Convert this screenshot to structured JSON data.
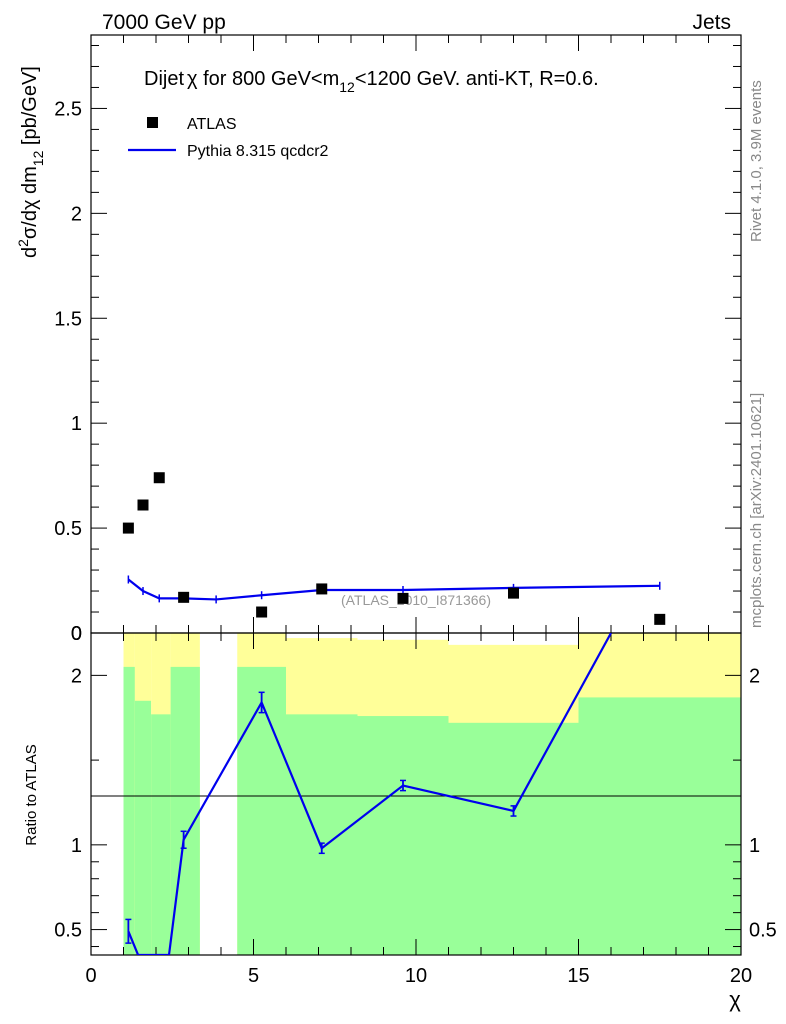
{
  "header": {
    "left": "7000 GeV pp",
    "right": "Jets"
  },
  "side_labels": {
    "rivet": "Rivet 4.1.0,  3.9M events",
    "mcplots": "mcplots.cern.ch [arXiv:2401.10621]"
  },
  "chart_data": [
    {
      "type": "scatter",
      "title": "Dijet χ for 800 GeV<m12<1200 GeV.  anti-KT, R=0.6.",
      "title_parts": {
        "pre": "Dijet",
        "chi": "χ",
        "mid": " for 800 GeV<m",
        "sub": "12",
        "post": "<1200 GeV.  anti-KT, R=0.6."
      },
      "ylabel": "d²σ/dχ dm12 [pb/GeV]",
      "ylabel_parts": {
        "d": "d",
        "sup2": "2",
        "body": "σ/dχ dm",
        "sub": "12",
        "unit": " [pb/GeV]"
      },
      "xlim": [
        0,
        20
      ],
      "ylim": [
        0,
        2.85
      ],
      "yticks": [
        "0",
        "0.5",
        "1",
        "1.5",
        "2",
        "2.5"
      ],
      "watermark": "(ATLAS_2010_I871366)",
      "legend": {
        "placement": "top-left",
        "atlas": "ATLAS",
        "mc": "Pythia 8.315 qcdcr2"
      },
      "series": [
        {
          "name": "ATLAS",
          "kind": "data",
          "x": [
            1.15,
            1.6,
            2.1,
            2.85,
            5.25,
            7.1,
            9.6,
            13.0,
            17.5
          ],
          "y": [
            0.5,
            0.61,
            0.74,
            0.17,
            0.1,
            0.21,
            0.165,
            0.19,
            0.065
          ]
        },
        {
          "name": "Pythia 8.315 qcdcr2",
          "kind": "mc",
          "color": "#0000ee",
          "x": [
            1.15,
            1.6,
            2.1,
            2.85,
            3.85,
            5.25,
            7.1,
            9.6,
            13.0,
            17.5
          ],
          "y": [
            0.255,
            0.2,
            0.165,
            0.165,
            0.16,
            0.18,
            0.205,
            0.205,
            0.215,
            0.225
          ]
        }
      ]
    },
    {
      "type": "line",
      "ylabel": "Ratio to ATLAS",
      "xlabel": "χ",
      "xlim": [
        0,
        20
      ],
      "ylim": [
        0.35,
        2.25
      ],
      "xticks": [
        "0",
        "5",
        "10",
        "15",
        "20"
      ],
      "yticks": [
        "0.5",
        "1",
        "2"
      ],
      "bands": [
        {
          "x0": 1.0,
          "x1": 1.35,
          "green": 2.05,
          "yellow": 2.25
        },
        {
          "x0": 1.35,
          "x1": 1.85,
          "green": 1.85,
          "yellow": 2.25
        },
        {
          "x0": 1.85,
          "x1": 2.45,
          "green": 1.77,
          "yellow": 2.25
        },
        {
          "x0": 2.45,
          "x1": 3.35,
          "green": 2.05,
          "yellow": 2.25
        },
        {
          "x0": 4.5,
          "x1": 6.0,
          "green": 2.05,
          "yellow": 2.25
        },
        {
          "x0": 6.0,
          "x1": 8.2,
          "green": 1.77,
          "yellow": 2.22
        },
        {
          "x0": 8.2,
          "x1": 11.0,
          "green": 1.76,
          "yellow": 2.21
        },
        {
          "x0": 11.0,
          "x1": 15.0,
          "green": 1.72,
          "yellow": 2.18
        },
        {
          "x0": 15.0,
          "x1": 20.0,
          "green": 1.87,
          "yellow": 2.25
        }
      ],
      "series": [
        {
          "name": "Pythia 8.315 qcdcr2",
          "color": "#0000ee",
          "x": [
            1.15,
            1.45,
            2.4,
            2.85,
            5.25,
            7.1,
            9.6,
            13.0,
            16.0
          ],
          "y": [
            0.49,
            0.35,
            0.35,
            1.03,
            1.84,
            0.98,
            1.35,
            1.2,
            2.25
          ],
          "err": [
            0.07,
            0,
            0,
            0.05,
            0.06,
            0.03,
            0.03,
            0.03,
            0
          ]
        }
      ]
    }
  ]
}
